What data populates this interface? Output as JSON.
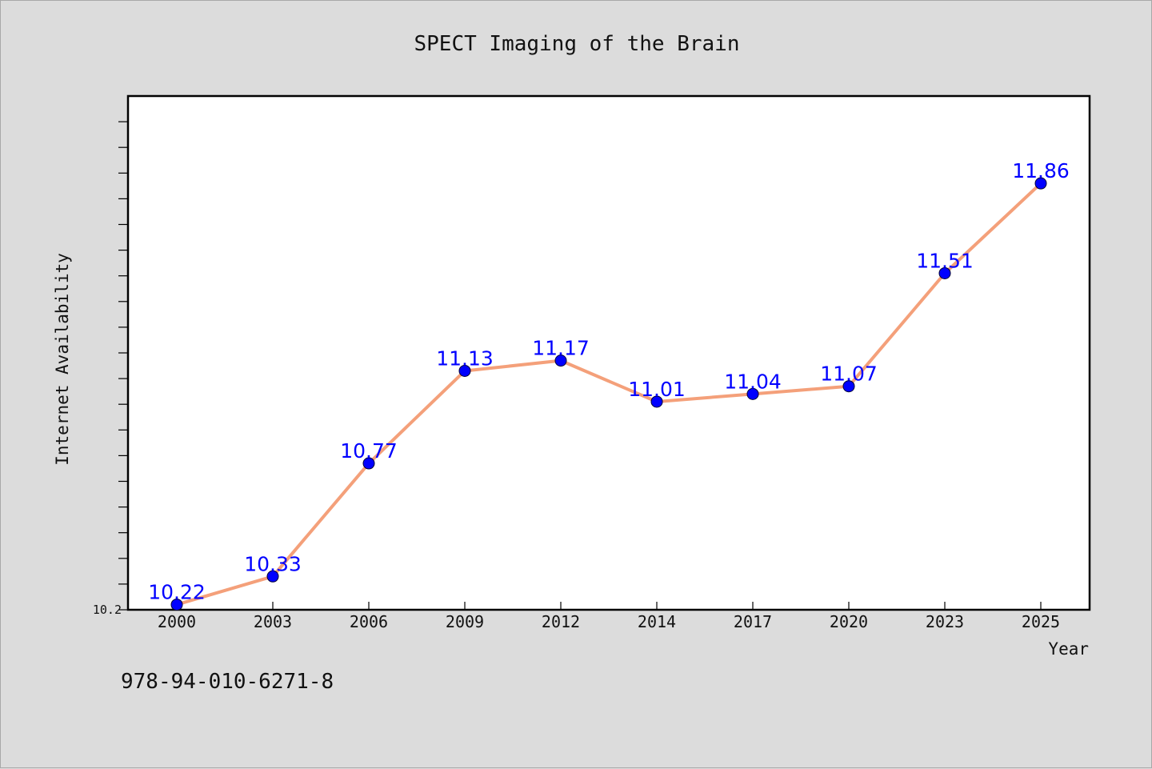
{
  "chart_data": {
    "type": "line",
    "title": "SPECT Imaging of the Brain",
    "xlabel": "Year",
    "ylabel": "Internet Availability",
    "categories": [
      "2000",
      "2003",
      "2006",
      "2009",
      "2012",
      "2014",
      "2017",
      "2020",
      "2023",
      "2025"
    ],
    "values": [
      10.22,
      10.33,
      10.77,
      11.13,
      11.17,
      11.01,
      11.04,
      11.07,
      11.51,
      11.86
    ],
    "data_labels": [
      "10.22",
      "10.33",
      "10.77",
      "11.13",
      "11.17",
      "11.01",
      "11.04",
      "11.07",
      "11.51",
      "11.86"
    ],
    "ytick_labels": [
      "10.2"
    ],
    "ylim": [
      10.2,
      12.2
    ],
    "grid": false,
    "line_color": "#f4a07a",
    "marker_color": "#0000ff",
    "label_color": "#0000ff",
    "background_color": "#dcdcdc",
    "plot_background": "#ffffff"
  },
  "footer": {
    "code": "978-94-010-6271-8"
  }
}
